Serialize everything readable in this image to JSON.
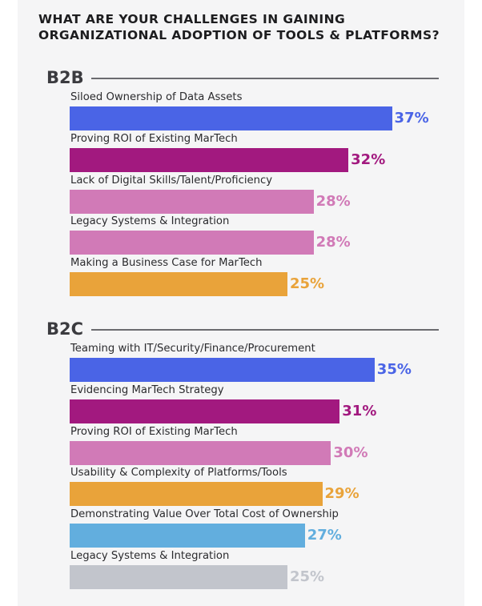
{
  "title_lines": [
    "WHAT ARE YOUR CHALLENGES IN GAINING",
    "ORGANIZATIONAL ADOPTION OF TOOLS & PLATFORMS?"
  ],
  "chart_data": [
    {
      "type": "bar",
      "orientation": "horizontal",
      "title": "B2B",
      "categories": [
        "Siloed Ownership of Data Assets",
        "Proving ROI of Existing MarTech",
        "Lack of Digital Skills/Talent/Proficiency",
        "Legacy Systems & Integration",
        "Making a Business Case for MarTech"
      ],
      "values": [
        37,
        32,
        28,
        28,
        25
      ],
      "value_labels": [
        "37%",
        "32%",
        "28%",
        "28%",
        "25%"
      ],
      "colors": [
        "#4a64e6",
        "#a2197f",
        "#d17ab7",
        "#d17ab7",
        "#e9a33a"
      ]
    },
    {
      "type": "bar",
      "orientation": "horizontal",
      "title": "B2C",
      "categories": [
        "Teaming with IT/Security/Finance/Procurement",
        "Evidencing MarTech Strategy",
        "Proving ROI of Existing MarTech",
        "Usability & Complexity of Platforms/Tools",
        "Demonstrating Value Over Total Cost of Ownership",
        "Legacy Systems & Integration"
      ],
      "values": [
        35,
        31,
        30,
        29,
        27,
        25
      ],
      "value_labels": [
        "35%",
        "31%",
        "30%",
        "29%",
        "27%",
        "25%"
      ],
      "colors": [
        "#4a64e6",
        "#a2197f",
        "#d17ab7",
        "#e9a33a",
        "#62aede",
        "#c2c5cc"
      ]
    }
  ]
}
